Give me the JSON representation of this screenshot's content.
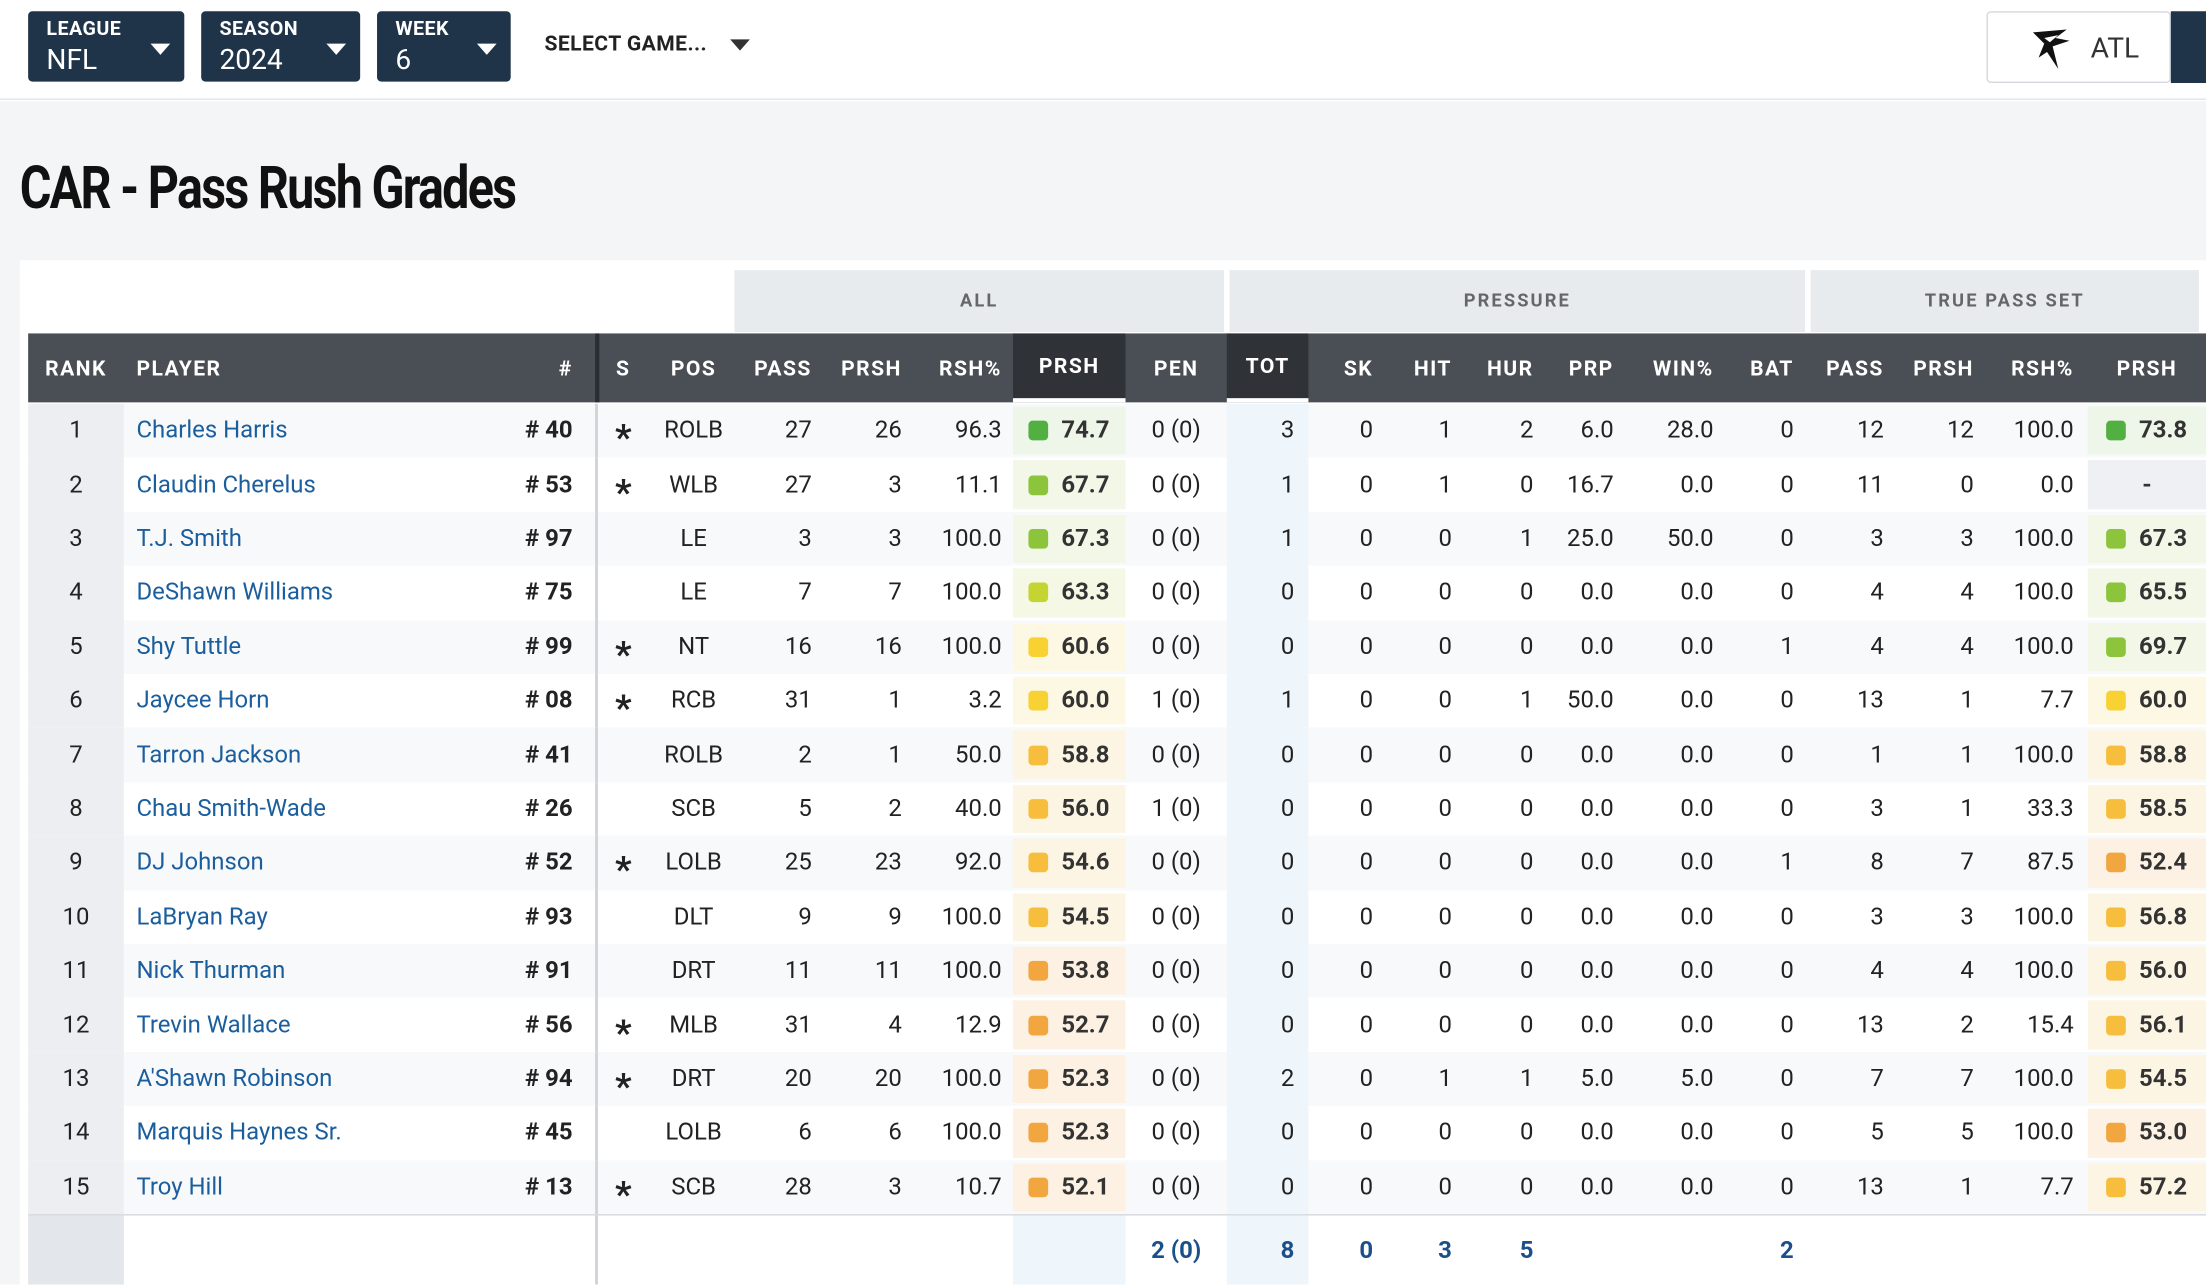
{
  "header": {
    "filters": [
      {
        "label": "LEAGUE",
        "value": "NFL"
      },
      {
        "label": "SEASON",
        "value": "2024"
      },
      {
        "label": "WEEK",
        "value": "6"
      }
    ],
    "select_game": "SELECT GAME...",
    "team": "ATL"
  },
  "title": "CAR - Pass Rush Grades",
  "table": {
    "groups": [
      "ALL",
      "PRESSURE",
      "TRUE PASS SET"
    ],
    "columns": [
      "RANK",
      "PLAYER",
      "#",
      "S",
      "POS",
      "PASS",
      "PRSH",
      "RSH%",
      "PRSH",
      "PEN",
      "TOT",
      "SK",
      "HIT",
      "HUR",
      "PRP",
      "WIN%",
      "BAT",
      "PASS",
      "PRSH",
      "RSH%",
      "PRSH"
    ],
    "rows": [
      [
        "1",
        "Charles Harris",
        "# 40",
        "*",
        "ROLB",
        "27",
        "26",
        "96.3",
        "74.7",
        "0 (0)",
        "3",
        "0",
        "1",
        "2",
        "6.0",
        "28.0",
        "0",
        "12",
        "12",
        "100.0",
        "73.8"
      ],
      [
        "2",
        "Claudin Cherelus",
        "# 53",
        "*",
        "WLB",
        "27",
        "3",
        "11.1",
        "67.7",
        "0 (0)",
        "1",
        "0",
        "1",
        "0",
        "16.7",
        "0.0",
        "0",
        "11",
        "0",
        "0.0",
        "-"
      ],
      [
        "3",
        "T.J. Smith",
        "# 97",
        null,
        "LE",
        "3",
        "3",
        "100.0",
        "67.3",
        "0 (0)",
        "1",
        "0",
        "0",
        "1",
        "25.0",
        "50.0",
        "0",
        "3",
        "3",
        "100.0",
        "67.3"
      ],
      [
        "4",
        "DeShawn Williams",
        "# 75",
        null,
        "LE",
        "7",
        "7",
        "100.0",
        "63.3",
        "0 (0)",
        "0",
        "0",
        "0",
        "0",
        "0.0",
        "0.0",
        "0",
        "4",
        "4",
        "100.0",
        "65.5"
      ],
      [
        "5",
        "Shy Tuttle",
        "# 99",
        "*",
        "NT",
        "16",
        "16",
        "100.0",
        "60.6",
        "0 (0)",
        "0",
        "0",
        "0",
        "0",
        "0.0",
        "0.0",
        "1",
        "4",
        "4",
        "100.0",
        "69.7"
      ],
      [
        "6",
        "Jaycee Horn",
        "# 08",
        "*",
        "RCB",
        "31",
        "1",
        "3.2",
        "60.0",
        "1 (0)",
        "1",
        "0",
        "0",
        "1",
        "50.0",
        "0.0",
        "0",
        "13",
        "1",
        "7.7",
        "60.0"
      ],
      [
        "7",
        "Tarron Jackson",
        "# 41",
        null,
        "ROLB",
        "2",
        "1",
        "50.0",
        "58.8",
        "0 (0)",
        "0",
        "0",
        "0",
        "0",
        "0.0",
        "0.0",
        "0",
        "1",
        "1",
        "100.0",
        "58.8"
      ],
      [
        "8",
        "Chau Smith-Wade",
        "# 26",
        null,
        "SCB",
        "5",
        "2",
        "40.0",
        "56.0",
        "1 (0)",
        "0",
        "0",
        "0",
        "0",
        "0.0",
        "0.0",
        "0",
        "3",
        "1",
        "33.3",
        "58.5"
      ],
      [
        "9",
        "DJ Johnson",
        "# 52",
        "*",
        "LOLB",
        "25",
        "23",
        "92.0",
        "54.6",
        "0 (0)",
        "0",
        "0",
        "0",
        "0",
        "0.0",
        "0.0",
        "1",
        "8",
        "7",
        "87.5",
        "52.4"
      ],
      [
        "10",
        "LaBryan Ray",
        "# 93",
        null,
        "DLT",
        "9",
        "9",
        "100.0",
        "54.5",
        "0 (0)",
        "0",
        "0",
        "0",
        "0",
        "0.0",
        "0.0",
        "0",
        "3",
        "3",
        "100.0",
        "56.8"
      ],
      [
        "11",
        "Nick Thurman",
        "# 91",
        null,
        "DRT",
        "11",
        "11",
        "100.0",
        "53.8",
        "0 (0)",
        "0",
        "0",
        "0",
        "0",
        "0.0",
        "0.0",
        "0",
        "4",
        "4",
        "100.0",
        "56.0"
      ],
      [
        "12",
        "Trevin Wallace",
        "# 56",
        "*",
        "MLB",
        "31",
        "4",
        "12.9",
        "52.7",
        "0 (0)",
        "0",
        "0",
        "0",
        "0",
        "0.0",
        "0.0",
        "0",
        "13",
        "2",
        "15.4",
        "56.1"
      ],
      [
        "13",
        "A'Shawn Robinson",
        "# 94",
        "*",
        "DRT",
        "20",
        "20",
        "100.0",
        "52.3",
        "0 (0)",
        "2",
        "0",
        "1",
        "1",
        "5.0",
        "5.0",
        "0",
        "7",
        "7",
        "100.0",
        "54.5"
      ],
      [
        "14",
        "Marquis Haynes Sr.",
        "# 45",
        null,
        "LOLB",
        "6",
        "6",
        "100.0",
        "52.3",
        "0 (0)",
        "0",
        "0",
        "0",
        "0",
        "0.0",
        "0.0",
        "0",
        "5",
        "5",
        "100.0",
        "53.0"
      ],
      [
        "15",
        "Troy Hill",
        "# 13",
        "*",
        "SCB",
        "28",
        "3",
        "10.7",
        "52.1",
        "0 (0)",
        "0",
        "0",
        "0",
        "0",
        "0.0",
        "0.0",
        "0",
        "13",
        "1",
        "7.7",
        "57.2"
      ]
    ],
    "totals": [
      null,
      null,
      null,
      null,
      null,
      null,
      null,
      null,
      null,
      "2 (0)",
      "8",
      "0",
      "3",
      "5",
      null,
      null,
      "2",
      null,
      null,
      null,
      null
    ]
  }
}
